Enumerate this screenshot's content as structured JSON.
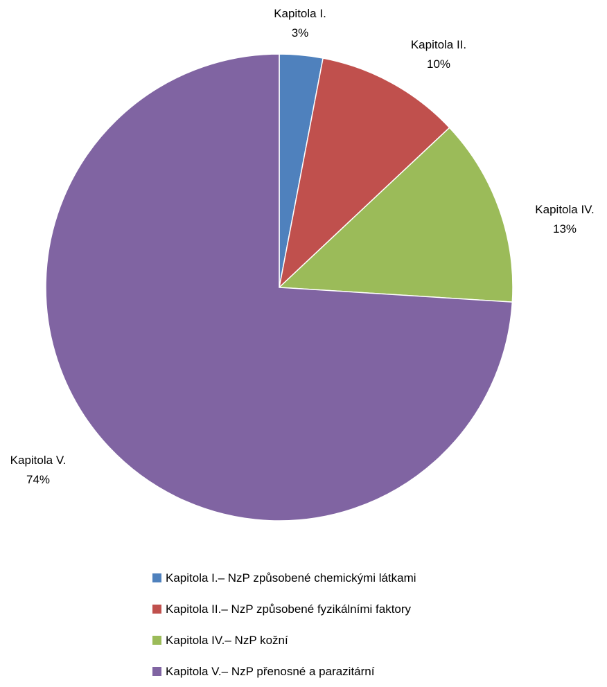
{
  "chart_data": {
    "type": "pie",
    "slices": [
      {
        "label": "Kapitola I.",
        "percent_label": "3%",
        "value": 3,
        "legend": "Kapitola I.– NzP způsobené chemickými látkami",
        "color": "#4F81BD"
      },
      {
        "label": "Kapitola II.",
        "percent_label": "10%",
        "value": 10,
        "legend": "Kapitola II.– NzP způsobené fyzikálními faktory",
        "color": "#C0504D"
      },
      {
        "label": "Kapitola IV.",
        "percent_label": "13%",
        "value": 13,
        "legend": "Kapitola IV.– NzP kožní",
        "color": "#9BBB59"
      },
      {
        "label": "Kapitola V.",
        "percent_label": "74%",
        "value": 74,
        "legend": "Kapitola V.– NzP přenosné a parazitární",
        "color": "#8064A2"
      }
    ],
    "legend_position": "bottom",
    "start_angle": "12 o'clock",
    "direction": "clockwise"
  }
}
